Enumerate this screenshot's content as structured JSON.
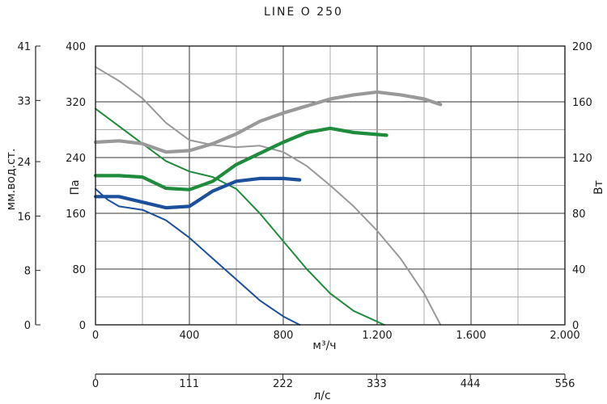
{
  "chart_data": {
    "type": "line",
    "title": "LINE O 250",
    "x_primary": {
      "label": "м³/ч",
      "range": [
        0,
        2000
      ],
      "ticks": [
        "0",
        "400",
        "800",
        "1.200",
        "1.600",
        "2.000"
      ],
      "tick_values": [
        0,
        400,
        800,
        1200,
        1600,
        2000
      ]
    },
    "x_secondary": {
      "label": "л/с",
      "range": [
        0,
        556
      ],
      "ticks": [
        "0",
        "111",
        "222",
        "333",
        "444",
        "556"
      ],
      "tick_values": [
        0,
        111,
        222,
        333,
        444,
        556
      ]
    },
    "y_pressure": {
      "label": "Па",
      "range": [
        0,
        400
      ],
      "ticks": [
        "0",
        "80",
        "160",
        "240",
        "320",
        "400"
      ],
      "tick_values": [
        0,
        80,
        160,
        240,
        320,
        400
      ]
    },
    "y_mm": {
      "label": "мм.вод.ст.",
      "range": [
        0,
        41
      ],
      "ticks": [
        "0",
        "8",
        "16",
        "24",
        "33",
        "41"
      ],
      "tick_values": [
        0,
        8,
        16,
        24,
        33,
        41
      ]
    },
    "y_power": {
      "label": "Вт",
      "range": [
        0,
        200
      ],
      "ticks": [
        "0",
        "40",
        "80",
        "120",
        "160",
        "200"
      ],
      "tick_values": [
        0,
        40,
        80,
        120,
        160,
        200
      ]
    },
    "grid": true,
    "series": [
      {
        "kind": "pressure",
        "axis": "pressure",
        "color": "#999999",
        "points": [
          [
            0,
            370
          ],
          [
            100,
            350
          ],
          [
            200,
            325
          ],
          [
            300,
            290
          ],
          [
            400,
            265
          ],
          [
            500,
            258
          ],
          [
            600,
            255
          ],
          [
            700,
            257
          ],
          [
            800,
            248
          ],
          [
            900,
            228
          ],
          [
            1000,
            200
          ],
          [
            1100,
            170
          ],
          [
            1200,
            135
          ],
          [
            1300,
            95
          ],
          [
            1400,
            45
          ],
          [
            1470,
            0
          ]
        ]
      },
      {
        "kind": "pressure",
        "axis": "pressure",
        "color": "#1e8c3c",
        "points": [
          [
            0,
            310
          ],
          [
            100,
            285
          ],
          [
            200,
            260
          ],
          [
            300,
            235
          ],
          [
            400,
            220
          ],
          [
            500,
            212
          ],
          [
            600,
            195
          ],
          [
            700,
            160
          ],
          [
            800,
            120
          ],
          [
            900,
            80
          ],
          [
            1000,
            45
          ],
          [
            1100,
            20
          ],
          [
            1230,
            0
          ]
        ]
      },
      {
        "kind": "pressure",
        "axis": "pressure",
        "color": "#1c4f9c",
        "points": [
          [
            0,
            195
          ],
          [
            50,
            180
          ],
          [
            100,
            170
          ],
          [
            200,
            165
          ],
          [
            300,
            150
          ],
          [
            400,
            125
          ],
          [
            500,
            95
          ],
          [
            600,
            65
          ],
          [
            700,
            35
          ],
          [
            800,
            12
          ],
          [
            870,
            0
          ]
        ]
      },
      {
        "kind": "power",
        "axis": "power",
        "color": "#999999",
        "points": [
          [
            0,
            131
          ],
          [
            100,
            132
          ],
          [
            200,
            130
          ],
          [
            300,
            124
          ],
          [
            400,
            125
          ],
          [
            500,
            130
          ],
          [
            600,
            137
          ],
          [
            700,
            146
          ],
          [
            800,
            152
          ],
          [
            900,
            157
          ],
          [
            1000,
            162
          ],
          [
            1100,
            165
          ],
          [
            1200,
            167
          ],
          [
            1300,
            165
          ],
          [
            1400,
            162
          ],
          [
            1470,
            158
          ]
        ]
      },
      {
        "kind": "power",
        "axis": "power",
        "color": "#1e8c3c",
        "points": [
          [
            0,
            107
          ],
          [
            100,
            107
          ],
          [
            200,
            106
          ],
          [
            300,
            98
          ],
          [
            400,
            97
          ],
          [
            500,
            103
          ],
          [
            600,
            115
          ],
          [
            700,
            123
          ],
          [
            800,
            131
          ],
          [
            900,
            138
          ],
          [
            1000,
            141
          ],
          [
            1100,
            138
          ],
          [
            1240,
            136
          ]
        ]
      },
      {
        "kind": "power",
        "axis": "power",
        "color": "#1c4f9c",
        "points": [
          [
            0,
            92
          ],
          [
            100,
            92
          ],
          [
            200,
            88
          ],
          [
            300,
            84
          ],
          [
            400,
            85
          ],
          [
            500,
            96
          ],
          [
            600,
            103
          ],
          [
            700,
            105
          ],
          [
            800,
            105
          ],
          [
            870,
            104
          ]
        ]
      }
    ]
  }
}
